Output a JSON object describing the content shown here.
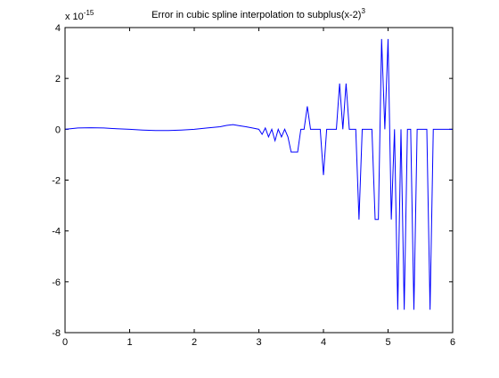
{
  "figure": {
    "background": "#ffffff",
    "axes_color": "#000000",
    "line_color": "#0000ff"
  },
  "chart_data": {
    "type": "line",
    "title": "Error in cubic spline interpolation to subplus(x-2)",
    "title_superscript": "3",
    "xlabel": "",
    "ylabel": "",
    "xlim": [
      0,
      6
    ],
    "ylim": [
      -8,
      4
    ],
    "y_multiplier": {
      "base": "x 10",
      "exponent": "-15"
    },
    "grid": false,
    "box": true,
    "x_ticks": [
      {
        "value": 0,
        "label": "0"
      },
      {
        "value": 1,
        "label": "1"
      },
      {
        "value": 2,
        "label": "2"
      },
      {
        "value": 3,
        "label": "3"
      },
      {
        "value": 4,
        "label": "4"
      },
      {
        "value": 5,
        "label": "5"
      },
      {
        "value": 6,
        "label": "6"
      }
    ],
    "y_ticks": [
      {
        "value": 4,
        "label": "4"
      },
      {
        "value": 2,
        "label": "2"
      },
      {
        "value": 0,
        "label": "0"
      },
      {
        "value": -2,
        "label": "-2"
      },
      {
        "value": -4,
        "label": "-4"
      },
      {
        "value": -6,
        "label": "-6"
      },
      {
        "value": -8,
        "label": "-8"
      }
    ],
    "series": [
      {
        "color": "#0000ff",
        "x": [
          0,
          0.2,
          0.4,
          0.6,
          0.8,
          1.0,
          1.2,
          1.4,
          1.6,
          1.8,
          2.0,
          2.2,
          2.4,
          2.5,
          2.6,
          2.7,
          2.8,
          2.9,
          3.0,
          3.05,
          3.1,
          3.15,
          3.2,
          3.25,
          3.3,
          3.35,
          3.4,
          3.45,
          3.5,
          3.55,
          3.6,
          3.65,
          3.7,
          3.75,
          3.8,
          3.85,
          3.9,
          3.95,
          4.0,
          4.05,
          4.1,
          4.15,
          4.2,
          4.25,
          4.3,
          4.35,
          4.4,
          4.45,
          4.5,
          4.55,
          4.6,
          4.65,
          4.7,
          4.75,
          4.8,
          4.85,
          4.9,
          4.95,
          5.0,
          5.05,
          5.1,
          5.15,
          5.2,
          5.25,
          5.3,
          5.35,
          5.4,
          5.45,
          5.5,
          5.55,
          5.6,
          5.65,
          5.7,
          5.75,
          5.8,
          5.85,
          5.9,
          5.95,
          6.0
        ],
        "values": [
          0.0,
          0.05,
          0.06,
          0.05,
          0.02,
          0.0,
          -0.03,
          -0.05,
          -0.05,
          -0.03,
          0.0,
          0.05,
          0.1,
          0.15,
          0.18,
          0.14,
          0.1,
          0.05,
          0.0,
          -0.2,
          0.05,
          -0.3,
          0.0,
          -0.45,
          0.0,
          -0.3,
          0.0,
          -0.3,
          -0.9,
          -0.9,
          -0.9,
          0.0,
          0.0,
          0.9,
          0.0,
          0.0,
          0.0,
          0.0,
          -1.8,
          0.0,
          0.0,
          0.0,
          0.0,
          1.8,
          0.0,
          1.8,
          0.0,
          0.0,
          0.0,
          -3.55,
          0.0,
          0.0,
          0.0,
          0.0,
          -3.55,
          -3.55,
          3.55,
          0.0,
          3.55,
          -3.55,
          0.0,
          -7.1,
          0.0,
          -7.1,
          0.0,
          0.0,
          -7.1,
          0.0,
          0.0,
          0.0,
          0.0,
          -7.1,
          0.0,
          0.0,
          0.0,
          0.0,
          0.0,
          0.0,
          0.0
        ]
      }
    ]
  }
}
